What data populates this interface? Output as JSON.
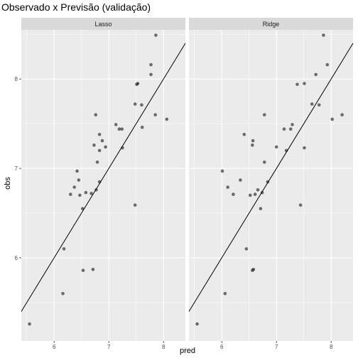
{
  "chart_data": {
    "type": "scatter",
    "title": "Observado x Previsão (validação)",
    "xlabel": "pred",
    "ylabel": "obs",
    "xlim": [
      5.4,
      8.4
    ],
    "ylim": [
      5.07,
      8.55
    ],
    "xticks": [
      6,
      7,
      8
    ],
    "yticks": [
      6,
      7,
      8
    ],
    "grid": true,
    "reference_line": {
      "slope": 1,
      "intercept": 0
    },
    "colors": {
      "panel_bg": "#ebebeb",
      "strip_bg": "#d9d9d9",
      "grid": "#ffffff",
      "point": "#000000",
      "point_opacity": 0.55,
      "line": "#000000"
    },
    "facets": [
      {
        "label": "Lasso",
        "points": [
          [
            5.55,
            5.26
          ],
          [
            6.16,
            5.6
          ],
          [
            6.18,
            6.1
          ],
          [
            6.53,
            5.86
          ],
          [
            6.71,
            5.87
          ],
          [
            6.3,
            6.71
          ],
          [
            6.37,
            6.79
          ],
          [
            6.42,
            6.97
          ],
          [
            6.45,
            6.87
          ],
          [
            6.47,
            6.7
          ],
          [
            6.52,
            6.55
          ],
          [
            6.58,
            6.73
          ],
          [
            6.68,
            6.72
          ],
          [
            6.77,
            6.76
          ],
          [
            6.79,
            7.07
          ],
          [
            6.83,
            6.85
          ],
          [
            6.73,
            7.26
          ],
          [
            6.83,
            7.2
          ],
          [
            6.83,
            7.38
          ],
          [
            6.88,
            7.31
          ],
          [
            6.94,
            7.24
          ],
          [
            6.76,
            7.6
          ],
          [
            7.13,
            7.49
          ],
          [
            7.19,
            7.44
          ],
          [
            7.24,
            7.44
          ],
          [
            7.25,
            7.23
          ],
          [
            7.48,
            6.59
          ],
          [
            7.48,
            7.72
          ],
          [
            7.51,
            7.94
          ],
          [
            7.53,
            7.95
          ],
          [
            7.6,
            7.71
          ],
          [
            7.61,
            7.46
          ],
          [
            7.77,
            8.05
          ],
          [
            7.77,
            8.16
          ],
          [
            7.85,
            7.6
          ],
          [
            7.86,
            8.49
          ],
          [
            8.06,
            7.55
          ]
        ]
      },
      {
        "label": "Ridge",
        "points": [
          [
            5.55,
            5.26
          ],
          [
            6.06,
            5.6
          ],
          [
            6.45,
            6.1
          ],
          [
            6.56,
            5.86
          ],
          [
            6.58,
            5.87
          ],
          [
            6.01,
            6.97
          ],
          [
            6.11,
            6.79
          ],
          [
            6.21,
            6.71
          ],
          [
            6.34,
            6.87
          ],
          [
            6.41,
            7.38
          ],
          [
            6.52,
            6.7
          ],
          [
            6.56,
            7.26
          ],
          [
            6.57,
            7.31
          ],
          [
            6.61,
            6.71
          ],
          [
            6.66,
            6.76
          ],
          [
            6.71,
            6.55
          ],
          [
            6.74,
            6.73
          ],
          [
            6.78,
            7.07
          ],
          [
            6.78,
            7.6
          ],
          [
            6.84,
            6.85
          ],
          [
            7.0,
            7.24
          ],
          [
            7.14,
            7.44
          ],
          [
            7.18,
            7.2
          ],
          [
            7.26,
            7.44
          ],
          [
            7.29,
            7.49
          ],
          [
            7.38,
            7.94
          ],
          [
            7.44,
            6.59
          ],
          [
            7.51,
            7.23
          ],
          [
            7.51,
            7.95
          ],
          [
            7.65,
            7.72
          ],
          [
            7.72,
            8.05
          ],
          [
            7.78,
            7.71
          ],
          [
            7.86,
            8.49
          ],
          [
            7.93,
            8.16
          ],
          [
            8.02,
            7.55
          ],
          [
            8.2,
            7.6
          ]
        ]
      }
    ]
  }
}
